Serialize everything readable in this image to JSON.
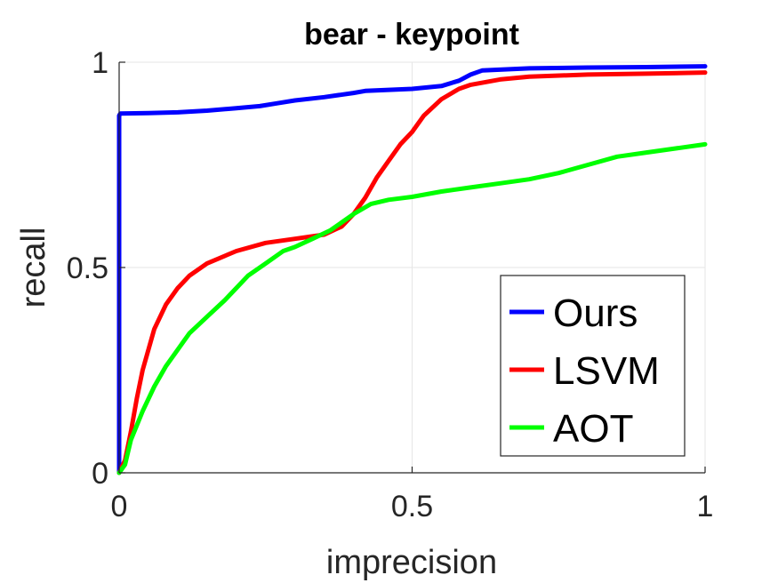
{
  "chart_data": {
    "type": "line",
    "title": "bear - keypoint",
    "xlabel": "imprecision",
    "ylabel": "recall",
    "xlim": [
      0,
      1
    ],
    "ylim": [
      0,
      1
    ],
    "xticks": [
      0,
      0.5,
      1
    ],
    "yticks": [
      0,
      0.5,
      1
    ],
    "xtick_labels": [
      "0",
      "0.5",
      "1"
    ],
    "ytick_labels": [
      "0",
      "0.5",
      "1"
    ],
    "grid": true,
    "legend_position": "bottom-right",
    "series": [
      {
        "name": "Ours",
        "color": "#0000ff",
        "x": [
          0,
          0,
          0.002,
          0.05,
          0.1,
          0.15,
          0.2,
          0.24,
          0.27,
          0.3,
          0.35,
          0.4,
          0.42,
          0.5,
          0.55,
          0.58,
          0.6,
          0.62,
          0.7,
          0.8,
          0.9,
          1.0
        ],
        "y": [
          0,
          0.87,
          0.875,
          0.876,
          0.878,
          0.882,
          0.888,
          0.893,
          0.9,
          0.907,
          0.915,
          0.925,
          0.93,
          0.935,
          0.942,
          0.955,
          0.97,
          0.98,
          0.985,
          0.987,
          0.988,
          0.99
        ]
      },
      {
        "name": "LSVM",
        "color": "#ff0000",
        "x": [
          0,
          0.01,
          0.02,
          0.03,
          0.04,
          0.06,
          0.08,
          0.1,
          0.12,
          0.15,
          0.2,
          0.25,
          0.3,
          0.35,
          0.38,
          0.4,
          0.42,
          0.44,
          0.46,
          0.48,
          0.5,
          0.52,
          0.55,
          0.58,
          0.6,
          0.65,
          0.7,
          0.8,
          0.9,
          1.0
        ],
        "y": [
          0,
          0.03,
          0.1,
          0.18,
          0.25,
          0.35,
          0.41,
          0.45,
          0.48,
          0.51,
          0.54,
          0.56,
          0.57,
          0.58,
          0.6,
          0.63,
          0.67,
          0.72,
          0.76,
          0.8,
          0.83,
          0.87,
          0.91,
          0.935,
          0.945,
          0.958,
          0.965,
          0.97,
          0.972,
          0.975
        ]
      },
      {
        "name": "AOT",
        "color": "#00ff00",
        "x": [
          0,
          0.01,
          0.02,
          0.04,
          0.06,
          0.08,
          0.1,
          0.12,
          0.15,
          0.18,
          0.2,
          0.22,
          0.25,
          0.28,
          0.3,
          0.33,
          0.36,
          0.38,
          0.4,
          0.43,
          0.46,
          0.5,
          0.55,
          0.6,
          0.65,
          0.7,
          0.75,
          0.8,
          0.85,
          0.9,
          0.95,
          1.0
        ],
        "y": [
          0,
          0.02,
          0.08,
          0.15,
          0.21,
          0.26,
          0.3,
          0.34,
          0.38,
          0.42,
          0.45,
          0.48,
          0.51,
          0.54,
          0.55,
          0.57,
          0.59,
          0.61,
          0.63,
          0.655,
          0.665,
          0.672,
          0.685,
          0.695,
          0.705,
          0.715,
          0.73,
          0.75,
          0.77,
          0.78,
          0.79,
          0.8
        ]
      }
    ]
  }
}
